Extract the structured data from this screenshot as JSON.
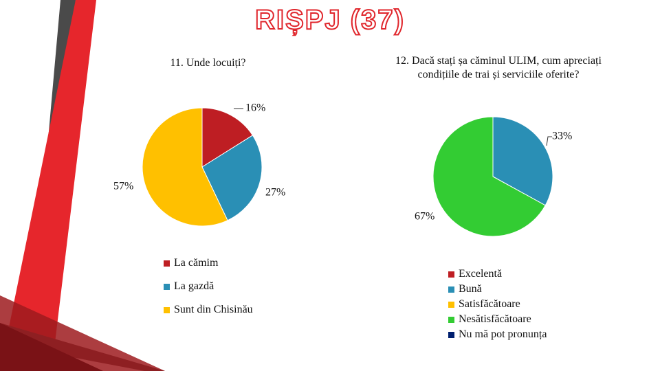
{
  "slide": {
    "title": "RIȘPJ (37)"
  },
  "chart_data": [
    {
      "type": "pie",
      "title": "11. Unde locuiți?",
      "categories": [
        "La cămim",
        "La gazdă",
        "Sunt din Chisinău"
      ],
      "values": [
        16,
        27,
        57
      ],
      "labels": [
        "16%",
        "27%",
        "57%"
      ],
      "colors": [
        "#be1e23",
        "#2a8fb5",
        "#ffc000"
      ],
      "legend": "bottom"
    },
    {
      "type": "pie",
      "title": "12. Dacă stați șa căminul ULIM, cum apreciați condițiile de trai și serviciile oferite?",
      "categories": [
        "Excelentă",
        "Bună",
        "Satisfăcătoare",
        "Nesătisfăcătoare",
        "Nu mă pot pronunța"
      ],
      "values": [
        0,
        33,
        0,
        67,
        0
      ],
      "labels": [
        "",
        "33%",
        "",
        "67%",
        ""
      ],
      "colors": [
        "#be1e23",
        "#2a8fb5",
        "#ffc000",
        "#33cc33",
        "#001f6f"
      ],
      "legend": "bottom"
    }
  ]
}
